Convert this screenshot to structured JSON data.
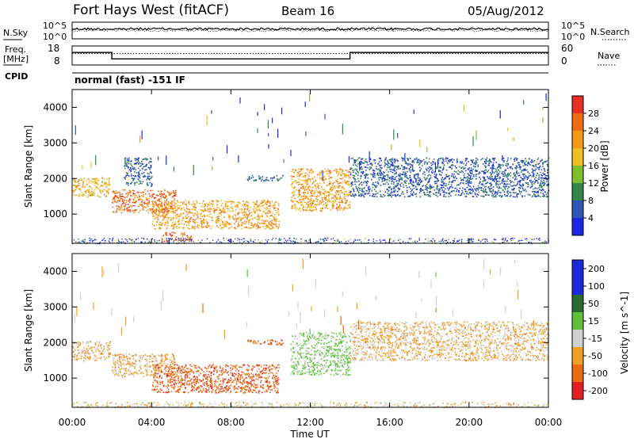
{
  "header": {
    "station": "Fort Hays West (fitACF)",
    "beam": "Beam 16",
    "date": "05/Aug/2012"
  },
  "panels": {
    "nsky_label": "N.Sky",
    "nsky_ticks": [
      "10^5",
      "10^0"
    ],
    "nsearch_label": "N.Search",
    "nsearch_ticks": [
      "10^5",
      "10^0"
    ],
    "freq_label_1": "Freq.",
    "freq_label_2": "[MHz]",
    "freq_ticks": [
      "18",
      "8"
    ],
    "nave_label": "Nave",
    "nave_ticks": [
      "60",
      "0"
    ],
    "cpid_label": "CPID",
    "cpid_text": "normal (fast) -151 IF"
  },
  "time_axis": {
    "label": "Time UT",
    "ticks": [
      "00:00",
      "04:00",
      "08:00",
      "12:00",
      "16:00",
      "20:00",
      "00:00"
    ],
    "hours": [
      0,
      4,
      8,
      12,
      16,
      20,
      24
    ]
  },
  "range_axis": {
    "label": "Slant Range [km]",
    "ticks": [
      1000,
      2000,
      3000,
      4000
    ],
    "range": [
      180,
      4500
    ]
  },
  "colors": {
    "power": [
      "#1a28e6",
      "#2f55b5",
      "#2f8a4a",
      "#7cc02a",
      "#f0c020",
      "#f29a10",
      "#ef6a10",
      "#e83020"
    ],
    "velocity": [
      "#1a2ad8",
      "#2a6a2e",
      "#5dc23a",
      "#cfcfcf",
      "#f0a020",
      "#ec6a10",
      "#e02020"
    ]
  },
  "chart_data": [
    {
      "type": "line",
      "title": "N.Sky / N.Search",
      "y_scale": "log",
      "ylim": [
        1,
        100000
      ],
      "x": [
        0,
        24
      ],
      "note": "noise traces (dotted and solid) near 10^3",
      "series": []
    },
    {
      "type": "line",
      "title": "Freq. / Nave",
      "xlim": [
        0,
        24
      ],
      "ylim": [
        8,
        18
      ],
      "series": [
        {
          "name": "Freq. [MHz]",
          "x": [
            0,
            2,
            2,
            14,
            14,
            24
          ],
          "y": [
            14.6,
            14.6,
            11.2,
            11.2,
            14.6,
            14.6
          ]
        },
        {
          "name": "Nave",
          "x": [
            0,
            24
          ],
          "y": [
            14,
            14
          ]
        }
      ]
    },
    {
      "type": "heatmap",
      "title": "Power [dB]",
      "colorbar_label": "Power [dB]",
      "colorbar_ticks": [
        4,
        8,
        12,
        16,
        20,
        24,
        28
      ],
      "colorbar_range": [
        0,
        32
      ],
      "xlabel": "Time UT",
      "ylabel": "Slant Range [km]",
      "xlim": [
        0,
        24
      ],
      "ylim": [
        180,
        4500
      ],
      "regions": [
        {
          "t0": 0.0,
          "t1": 1.9,
          "r0": 1500,
          "r1": 2050,
          "level": 20
        },
        {
          "t0": 2.0,
          "t1": 5.2,
          "r0": 1050,
          "r1": 1700,
          "level": 26
        },
        {
          "t0": 2.6,
          "t1": 4.0,
          "r0": 1800,
          "r1": 2600,
          "level": 6
        },
        {
          "t0": 4.0,
          "t1": 10.4,
          "r0": 600,
          "r1": 1400,
          "level": 22
        },
        {
          "t0": 4.5,
          "t1": 6.0,
          "r0": 250,
          "r1": 500,
          "level": 28
        },
        {
          "t0": 8.8,
          "t1": 10.6,
          "r0": 1950,
          "r1": 2100,
          "level": 6
        },
        {
          "t0": 11.0,
          "t1": 14.0,
          "r0": 1100,
          "r1": 2300,
          "level": 22
        },
        {
          "t0": 14.0,
          "t1": 24.0,
          "r0": 1500,
          "r1": 2600,
          "level": 6
        }
      ]
    },
    {
      "type": "heatmap",
      "title": "Velocity [m s-1]",
      "colorbar_label": "Velocity [m s^-1]",
      "colorbar_ticks": [
        200,
        100,
        50,
        15,
        -15,
        -50,
        -100,
        -200
      ],
      "xlabel": "Time UT",
      "ylabel": "Slant Range [km]",
      "xlim": [
        0,
        24
      ],
      "ylim": [
        180,
        4500
      ],
      "regions": [
        {
          "t0": 0.0,
          "t1": 1.9,
          "r0": 1500,
          "r1": 2050,
          "level": -10
        },
        {
          "t0": 2.0,
          "t1": 5.2,
          "r0": 1050,
          "r1": 1700,
          "level": -10
        },
        {
          "t0": 4.0,
          "t1": 10.4,
          "r0": 600,
          "r1": 1400,
          "level": -60
        },
        {
          "t0": 8.8,
          "t1": 10.6,
          "r0": 1950,
          "r1": 2100,
          "level": -60
        },
        {
          "t0": 11.0,
          "t1": 14.0,
          "r0": 1100,
          "r1": 2300,
          "level": 40
        },
        {
          "t0": 14.0,
          "t1": 24.0,
          "r0": 1500,
          "r1": 2600,
          "level": -5
        }
      ]
    }
  ]
}
